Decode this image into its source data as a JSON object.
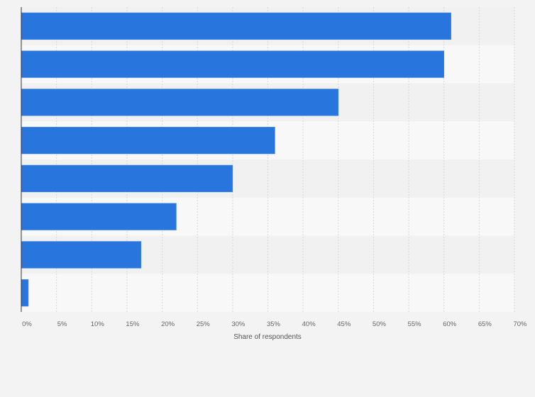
{
  "chart_data": {
    "type": "bar",
    "orientation": "horizontal",
    "categories": [
      "",
      "",
      "",
      "",
      "",
      "",
      "",
      ""
    ],
    "values": [
      61,
      60,
      45,
      36,
      30,
      22,
      17,
      1
    ],
    "title": "",
    "xlabel": "Share of respondents",
    "ylabel": "",
    "xlim": [
      0,
      70
    ],
    "xticks": [
      0,
      5,
      10,
      15,
      20,
      25,
      30,
      35,
      40,
      45,
      50,
      55,
      60,
      65,
      70
    ],
    "tick_labels": [
      "0%",
      "5%",
      "10%",
      "15%",
      "20%",
      "25%",
      "30%",
      "35%",
      "40%",
      "45%",
      "50%",
      "55%",
      "60%",
      "65%",
      "70%"
    ],
    "grid": true,
    "bar_color": "#2876dd"
  }
}
